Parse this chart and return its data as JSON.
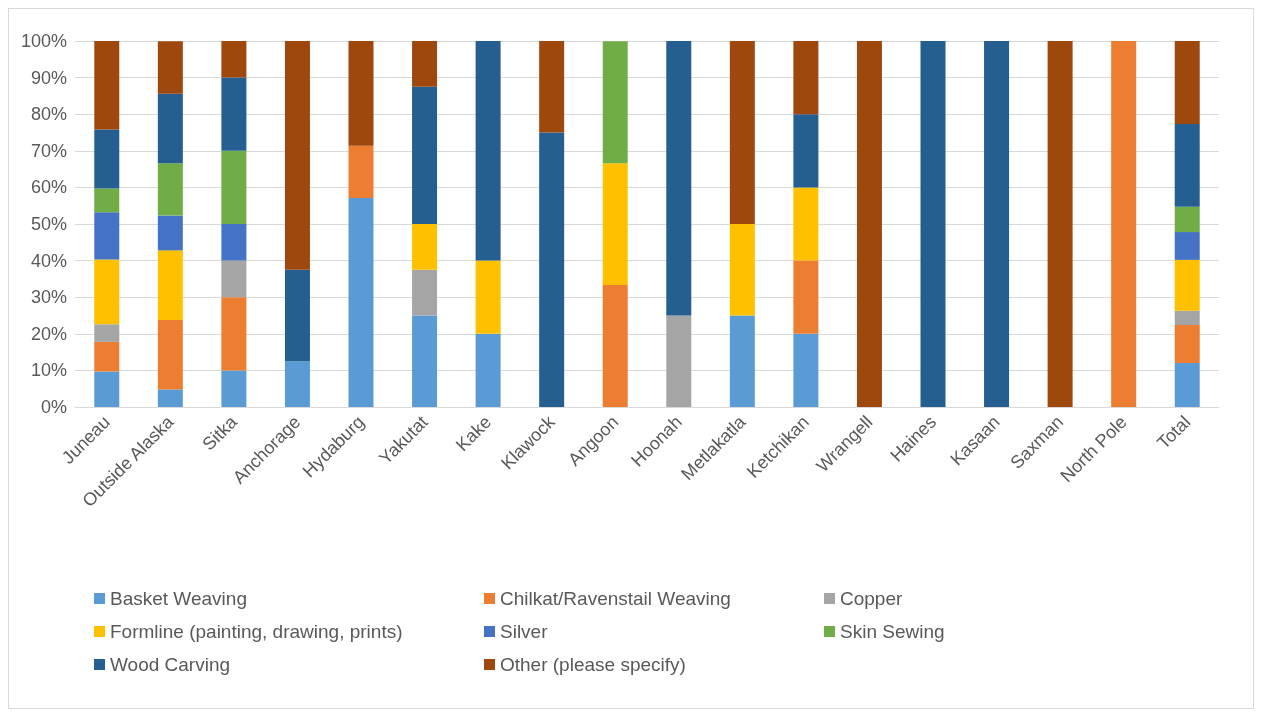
{
  "chart_data": {
    "type": "bar",
    "stacked": true,
    "categories": [
      "Juneau",
      "Outside Alaska",
      "Sitka",
      "Anchorage",
      "Hydaburg",
      "Yakutat",
      "Kake",
      "Klawock",
      "Angoon",
      "Hoonah",
      "Metlakatla",
      "Ketchikan",
      "Wrangell",
      "Haines",
      "Kasaan",
      "Saxman",
      "North Pole",
      "Total"
    ],
    "series": [
      {
        "name": "Basket Weaving",
        "color": "#5b9bd5",
        "values": [
          9.7,
          4.8,
          10,
          12.5,
          57.1,
          25,
          20,
          0,
          0,
          0,
          25,
          20,
          0,
          0,
          0,
          0,
          0,
          12.0
        ]
      },
      {
        "name": "Chilkat/Ravenstail Weaving",
        "color": "#ed7d31",
        "values": [
          8.1,
          19.0,
          20,
          0,
          14.3,
          0,
          0,
          0,
          33.3,
          0,
          0,
          20,
          0,
          0,
          0,
          0,
          100,
          10.4
        ]
      },
      {
        "name": "Copper",
        "color": "#a5a5a5",
        "values": [
          4.8,
          0,
          10,
          0,
          0,
          12.5,
          0,
          0,
          0,
          25,
          0,
          0,
          0,
          0,
          0,
          0,
          0,
          3.9
        ]
      },
      {
        "name": "Formline (painting, drawing, prints)",
        "color": "#ffc000",
        "values": [
          17.7,
          19.0,
          0,
          0,
          0,
          12.5,
          20,
          0,
          33.3,
          0,
          25,
          20,
          0,
          0,
          0,
          0,
          0,
          13.9
        ]
      },
      {
        "name": "Silver",
        "color": "#4472c4",
        "values": [
          12.9,
          9.5,
          10,
          0,
          0,
          0,
          0,
          0,
          0,
          0,
          0,
          0,
          0,
          0,
          0,
          0,
          0,
          7.6
        ]
      },
      {
        "name": "Skin Sewing",
        "color": "#70ad47",
        "values": [
          6.5,
          14.3,
          20,
          0,
          0,
          0,
          0,
          0,
          33.3,
          0,
          0,
          0,
          0,
          0,
          0,
          0,
          0,
          6.9
        ]
      },
      {
        "name": "Wood Carving",
        "color": "#255e91",
        "values": [
          16.1,
          19.0,
          20,
          25,
          0,
          37.5,
          60,
          75,
          0,
          75,
          0,
          20,
          0,
          100,
          100,
          0,
          0,
          22.6
        ]
      },
      {
        "name": "Other (please specify)",
        "color": "#9e480e",
        "values": [
          24.2,
          14.3,
          10,
          62.5,
          28.6,
          12.5,
          0,
          25,
          0,
          0,
          50,
          20,
          100,
          0,
          0,
          100,
          0,
          22.7
        ]
      }
    ],
    "ylim": [
      0,
      100
    ],
    "yticks": [
      {
        "value": 0,
        "label": "0%"
      },
      {
        "value": 10,
        "label": "10%"
      },
      {
        "value": 20,
        "label": "20%"
      },
      {
        "value": 30,
        "label": "30%"
      },
      {
        "value": 40,
        "label": "40%"
      },
      {
        "value": 50,
        "label": "50%"
      },
      {
        "value": 60,
        "label": "60%"
      },
      {
        "value": 70,
        "label": "70%"
      },
      {
        "value": 80,
        "label": "80%"
      },
      {
        "value": 90,
        "label": "90%"
      },
      {
        "value": 100,
        "label": "100%"
      }
    ],
    "grid": "y",
    "legend": "bottom"
  }
}
